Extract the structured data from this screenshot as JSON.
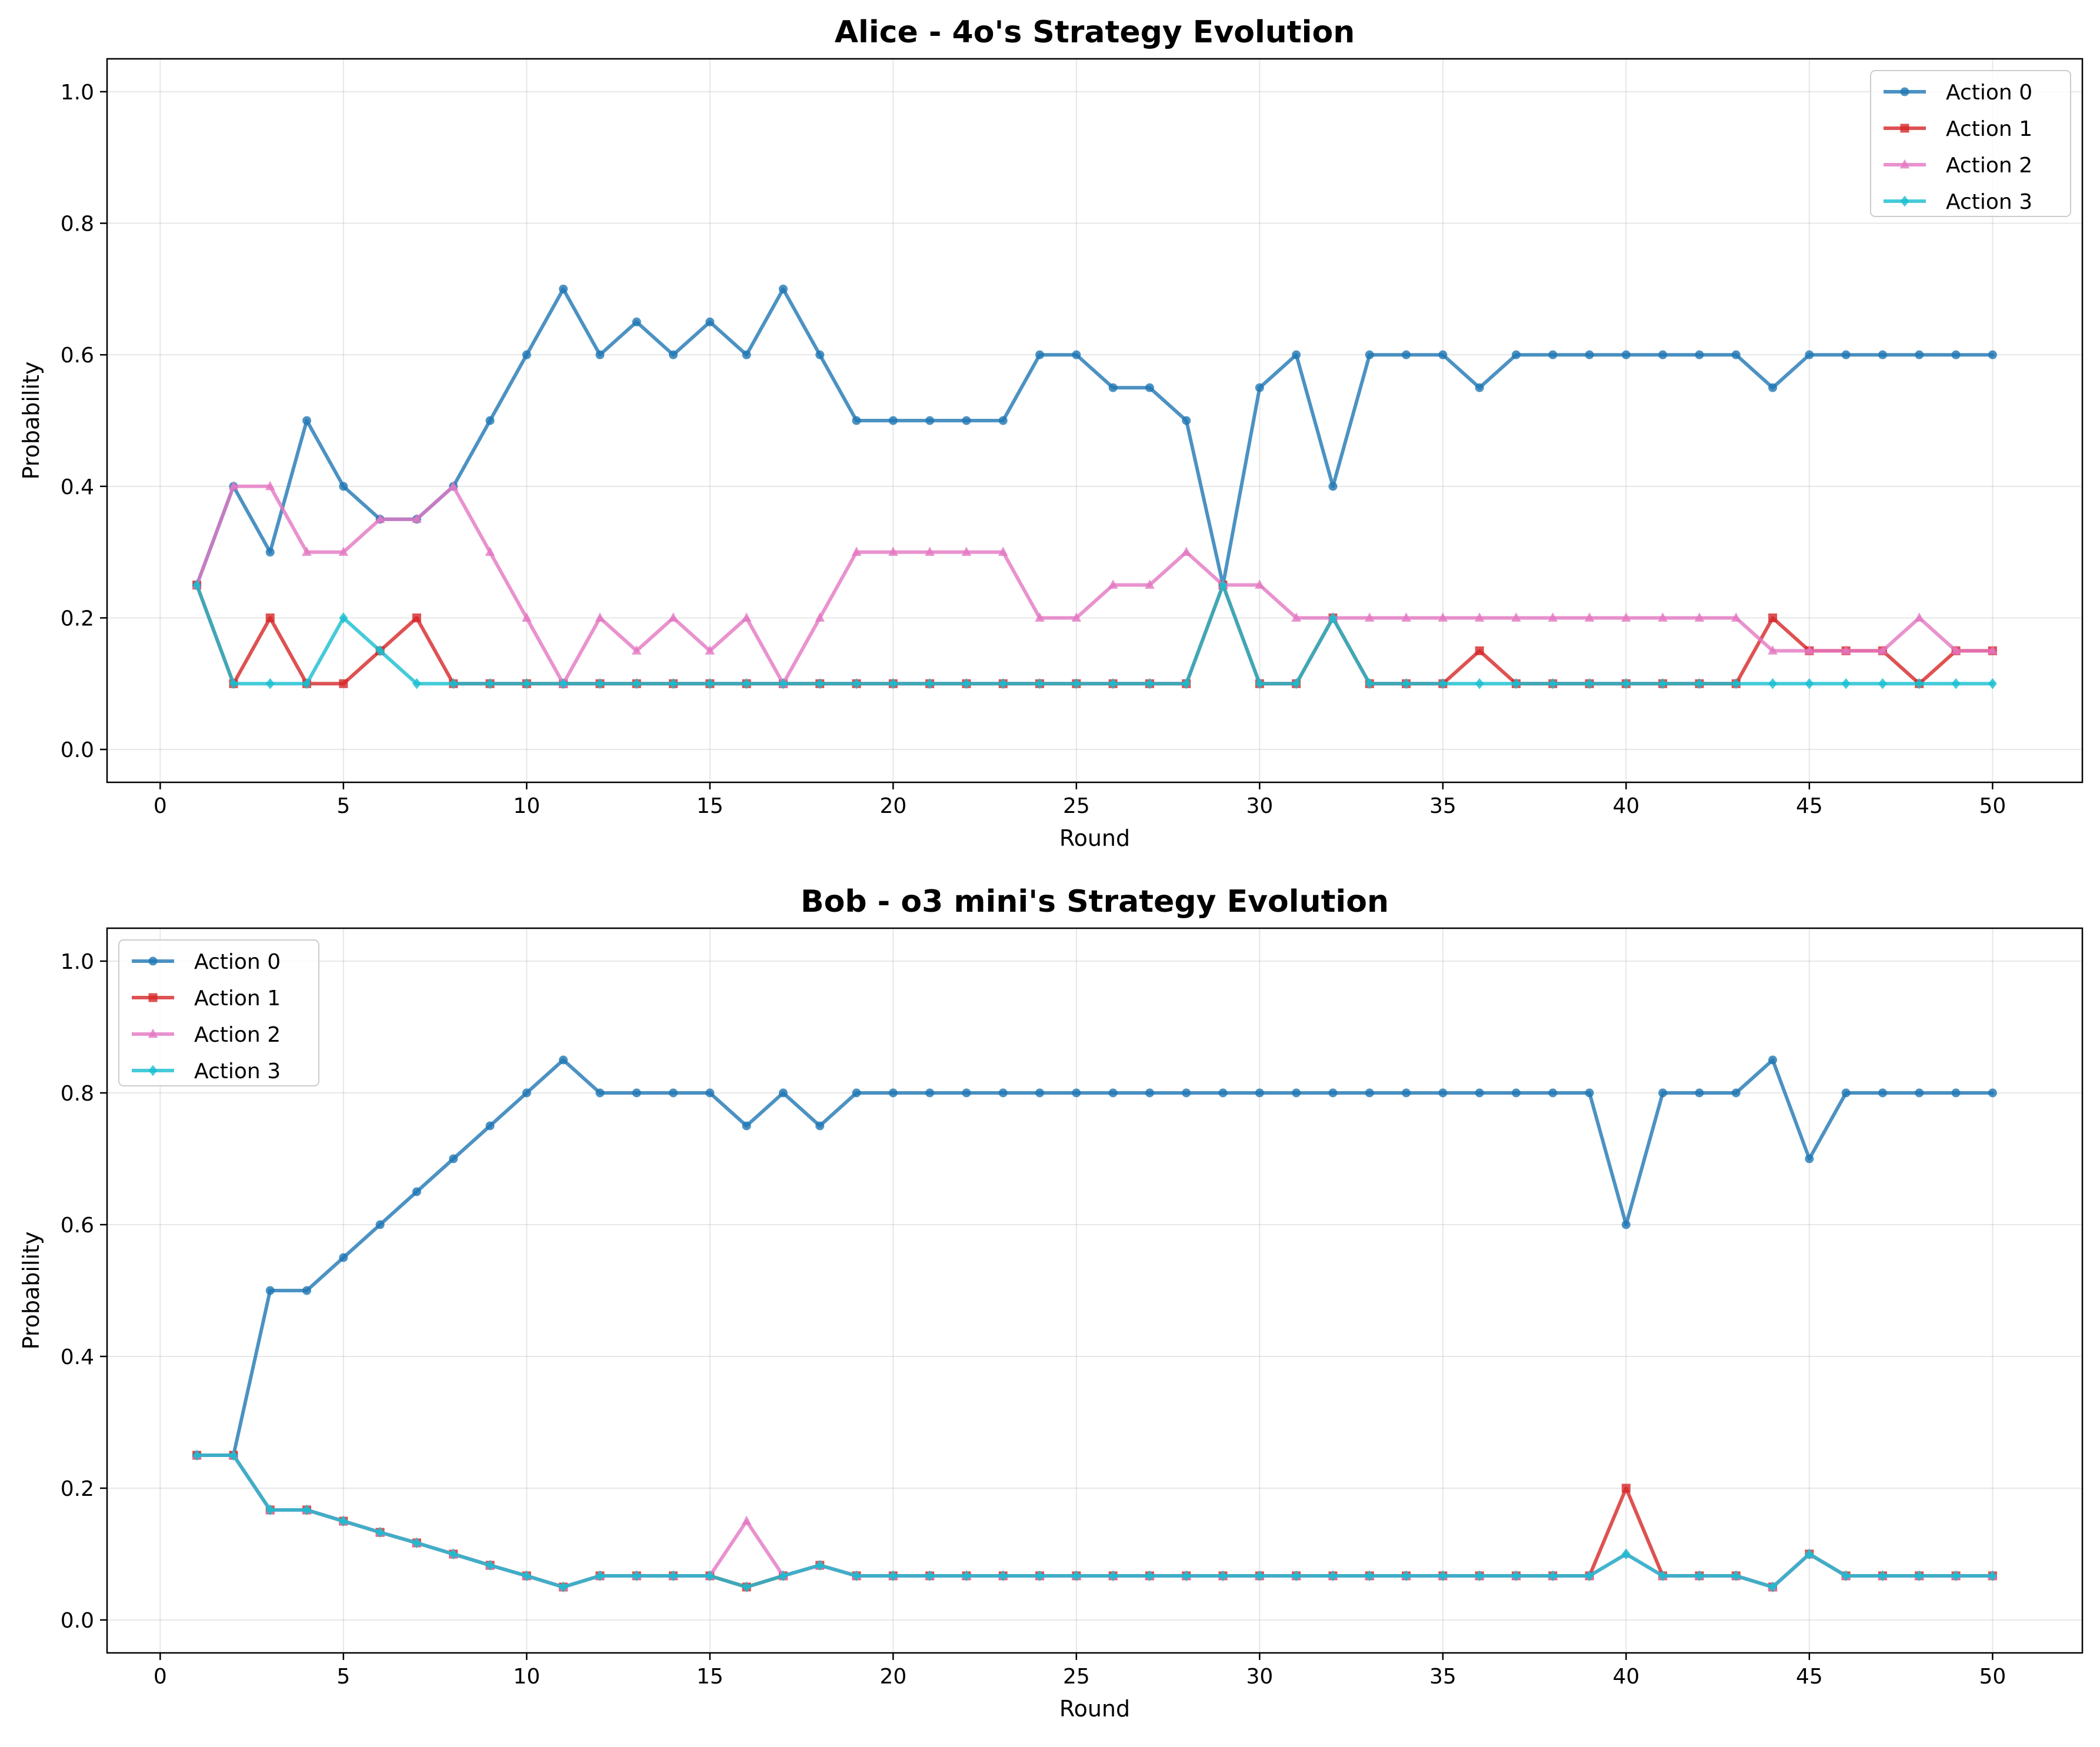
{
  "figure": {
    "background": "#ffffff",
    "series_colors": [
      "#1f77b4",
      "#d62728",
      "#e377c2",
      "#17becf"
    ],
    "series_markers": [
      "circle",
      "square",
      "triangle",
      "diamond"
    ]
  },
  "chart_data": [
    {
      "type": "line",
      "title": "Alice - 4o's Strategy Evolution",
      "xlabel": "Round",
      "ylabel": "Probability",
      "xlim": [
        -1.45,
        52.45
      ],
      "ylim": [
        -0.05,
        1.05
      ],
      "xticks": [
        0,
        5,
        10,
        15,
        20,
        25,
        30,
        35,
        40,
        45,
        50
      ],
      "yticks": [
        0.0,
        0.2,
        0.4,
        0.6,
        0.8,
        1.0
      ],
      "xtick_labels": [
        "0",
        "5",
        "10",
        "15",
        "20",
        "25",
        "30",
        "35",
        "40",
        "45",
        "50"
      ],
      "ytick_labels": [
        "0.0",
        "0.2",
        "0.4",
        "0.6",
        "0.8",
        "1.0"
      ],
      "grid": true,
      "legend_position": "upper right",
      "x": [
        1,
        2,
        3,
        4,
        5,
        6,
        7,
        8,
        9,
        10,
        11,
        12,
        13,
        14,
        15,
        16,
        17,
        18,
        19,
        20,
        21,
        22,
        23,
        24,
        25,
        26,
        27,
        28,
        29,
        30,
        31,
        32,
        33,
        34,
        35,
        36,
        37,
        38,
        39,
        40,
        41,
        42,
        43,
        44,
        45,
        46,
        47,
        48,
        49,
        50
      ],
      "series": [
        {
          "name": "Action 0",
          "values": [
            0.25,
            0.4,
            0.3,
            0.5,
            0.4,
            0.35,
            0.35,
            0.4,
            0.5,
            0.6,
            0.7,
            0.6,
            0.65,
            0.6,
            0.65,
            0.6,
            0.7,
            0.6,
            0.5,
            0.5,
            0.5,
            0.5,
            0.5,
            0.6,
            0.6,
            0.55,
            0.55,
            0.5,
            0.25,
            0.55,
            0.6,
            0.4,
            0.6,
            0.6,
            0.6,
            0.55,
            0.6,
            0.6,
            0.6,
            0.6,
            0.6,
            0.6,
            0.6,
            0.55,
            0.6,
            0.6,
            0.6,
            0.6,
            0.6,
            0.6
          ]
        },
        {
          "name": "Action 1",
          "values": [
            0.25,
            0.1,
            0.2,
            0.1,
            0.1,
            0.15,
            0.2,
            0.1,
            0.1,
            0.1,
            0.1,
            0.1,
            0.1,
            0.1,
            0.1,
            0.1,
            0.1,
            0.1,
            0.1,
            0.1,
            0.1,
            0.1,
            0.1,
            0.1,
            0.1,
            0.1,
            0.1,
            0.1,
            0.25,
            0.1,
            0.1,
            0.2,
            0.1,
            0.1,
            0.1,
            0.15,
            0.1,
            0.1,
            0.1,
            0.1,
            0.1,
            0.1,
            0.1,
            0.2,
            0.15,
            0.15,
            0.15,
            0.1,
            0.15,
            0.15
          ]
        },
        {
          "name": "Action 2",
          "values": [
            0.25,
            0.4,
            0.4,
            0.3,
            0.3,
            0.35,
            0.35,
            0.4,
            0.3,
            0.2,
            0.1,
            0.2,
            0.15,
            0.2,
            0.15,
            0.2,
            0.1,
            0.2,
            0.3,
            0.3,
            0.3,
            0.3,
            0.3,
            0.2,
            0.2,
            0.25,
            0.25,
            0.3,
            0.25,
            0.25,
            0.2,
            0.2,
            0.2,
            0.2,
            0.2,
            0.2,
            0.2,
            0.2,
            0.2,
            0.2,
            0.2,
            0.2,
            0.2,
            0.15,
            0.15,
            0.15,
            0.15,
            0.2,
            0.15,
            0.15
          ]
        },
        {
          "name": "Action 3",
          "values": [
            0.25,
            0.1,
            0.1,
            0.1,
            0.2,
            0.15,
            0.1,
            0.1,
            0.1,
            0.1,
            0.1,
            0.1,
            0.1,
            0.1,
            0.1,
            0.1,
            0.1,
            0.1,
            0.1,
            0.1,
            0.1,
            0.1,
            0.1,
            0.1,
            0.1,
            0.1,
            0.1,
            0.1,
            0.25,
            0.1,
            0.1,
            0.2,
            0.1,
            0.1,
            0.1,
            0.1,
            0.1,
            0.1,
            0.1,
            0.1,
            0.1,
            0.1,
            0.1,
            0.1,
            0.1,
            0.1,
            0.1,
            0.1,
            0.1,
            0.1
          ]
        }
      ]
    },
    {
      "type": "line",
      "title": "Bob - o3 mini's Strategy Evolution",
      "xlabel": "Round",
      "ylabel": "Probability",
      "xlim": [
        -1.45,
        52.45
      ],
      "ylim": [
        -0.05,
        1.05
      ],
      "xticks": [
        0,
        5,
        10,
        15,
        20,
        25,
        30,
        35,
        40,
        45,
        50
      ],
      "yticks": [
        0.0,
        0.2,
        0.4,
        0.6,
        0.8,
        1.0
      ],
      "xtick_labels": [
        "0",
        "5",
        "10",
        "15",
        "20",
        "25",
        "30",
        "35",
        "40",
        "45",
        "50"
      ],
      "ytick_labels": [
        "0.0",
        "0.2",
        "0.4",
        "0.6",
        "0.8",
        "1.0"
      ],
      "grid": true,
      "legend_position": "upper left",
      "x": [
        1,
        2,
        3,
        4,
        5,
        6,
        7,
        8,
        9,
        10,
        11,
        12,
        13,
        14,
        15,
        16,
        17,
        18,
        19,
        20,
        21,
        22,
        23,
        24,
        25,
        26,
        27,
        28,
        29,
        30,
        31,
        32,
        33,
        34,
        35,
        36,
        37,
        38,
        39,
        40,
        41,
        42,
        43,
        44,
        45,
        46,
        47,
        48,
        49,
        50
      ],
      "series": [
        {
          "name": "Action 0",
          "values": [
            0.25,
            0.25,
            0.5,
            0.5,
            0.55,
            0.6,
            0.65,
            0.7,
            0.75,
            0.8,
            0.85,
            0.8,
            0.8,
            0.8,
            0.8,
            0.75,
            0.8,
            0.75,
            0.8,
            0.8,
            0.8,
            0.8,
            0.8,
            0.8,
            0.8,
            0.8,
            0.8,
            0.8,
            0.8,
            0.8,
            0.8,
            0.8,
            0.8,
            0.8,
            0.8,
            0.8,
            0.8,
            0.8,
            0.8,
            0.6,
            0.8,
            0.8,
            0.8,
            0.85,
            0.7,
            0.8,
            0.8,
            0.8,
            0.8,
            0.8
          ]
        },
        {
          "name": "Action 1",
          "values": [
            0.25,
            0.25,
            0.167,
            0.167,
            0.15,
            0.133,
            0.117,
            0.1,
            0.083,
            0.067,
            0.05,
            0.067,
            0.067,
            0.067,
            0.067,
            0.05,
            0.067,
            0.083,
            0.067,
            0.067,
            0.067,
            0.067,
            0.067,
            0.067,
            0.067,
            0.067,
            0.067,
            0.067,
            0.067,
            0.067,
            0.067,
            0.067,
            0.067,
            0.067,
            0.067,
            0.067,
            0.067,
            0.067,
            0.067,
            0.2,
            0.067,
            0.067,
            0.067,
            0.05,
            0.1,
            0.067,
            0.067,
            0.067,
            0.067,
            0.067
          ]
        },
        {
          "name": "Action 2",
          "values": [
            0.25,
            0.25,
            0.167,
            0.167,
            0.15,
            0.133,
            0.117,
            0.1,
            0.083,
            0.067,
            0.05,
            0.067,
            0.067,
            0.067,
            0.067,
            0.15,
            0.067,
            0.083,
            0.067,
            0.067,
            0.067,
            0.067,
            0.067,
            0.067,
            0.067,
            0.067,
            0.067,
            0.067,
            0.067,
            0.067,
            0.067,
            0.067,
            0.067,
            0.067,
            0.067,
            0.067,
            0.067,
            0.067,
            0.067,
            0.1,
            0.067,
            0.067,
            0.067,
            0.05,
            0.1,
            0.067,
            0.067,
            0.067,
            0.067,
            0.067
          ]
        },
        {
          "name": "Action 3",
          "values": [
            0.25,
            0.25,
            0.167,
            0.167,
            0.15,
            0.133,
            0.117,
            0.1,
            0.083,
            0.067,
            0.05,
            0.067,
            0.067,
            0.067,
            0.067,
            0.05,
            0.067,
            0.083,
            0.067,
            0.067,
            0.067,
            0.067,
            0.067,
            0.067,
            0.067,
            0.067,
            0.067,
            0.067,
            0.067,
            0.067,
            0.067,
            0.067,
            0.067,
            0.067,
            0.067,
            0.067,
            0.067,
            0.067,
            0.067,
            0.1,
            0.067,
            0.067,
            0.067,
            0.05,
            0.1,
            0.067,
            0.067,
            0.067,
            0.067,
            0.067
          ]
        }
      ]
    }
  ]
}
